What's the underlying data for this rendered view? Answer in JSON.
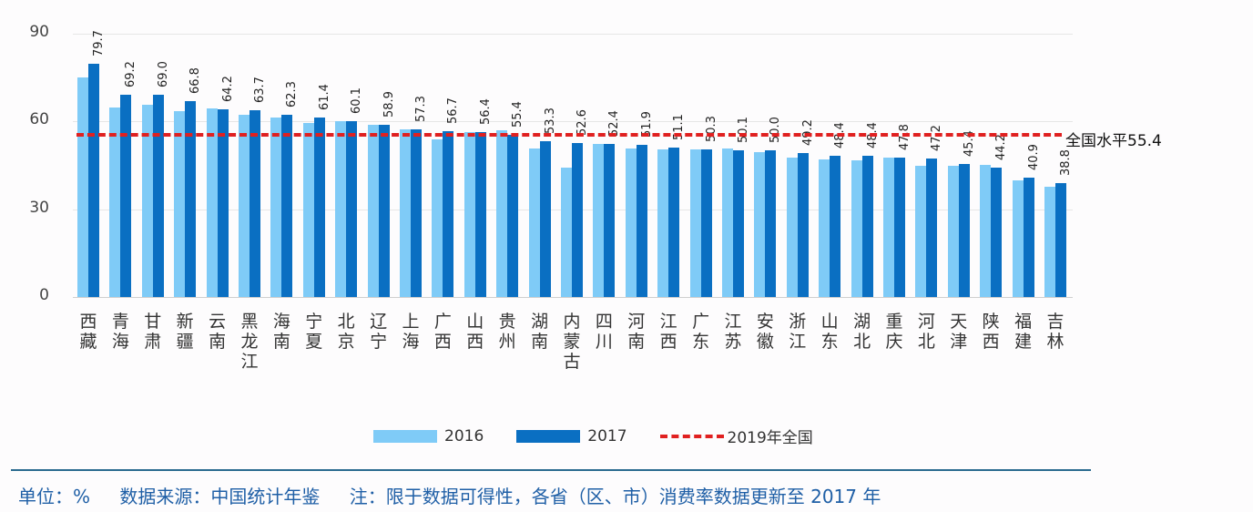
{
  "chart_data": {
    "type": "bar",
    "title": "",
    "xlabel": "",
    "ylabel": "",
    "ylim": [
      0,
      90
    ],
    "yticks": [
      0,
      30,
      60,
      90
    ],
    "grid": true,
    "legend_position": "bottom",
    "categories": [
      "西藏",
      "青海",
      "甘肃",
      "新疆",
      "云南",
      "黑龙江",
      "海南",
      "宁夏",
      "北京",
      "辽宁",
      "上海",
      "广西",
      "山西",
      "贵州",
      "湖南",
      "内蒙古",
      "四川",
      "河南",
      "江西",
      "广东",
      "江苏",
      "安徽",
      "浙江",
      "山东",
      "湖北",
      "重庆",
      "河北",
      "天津",
      "陕西",
      "福建",
      "吉林"
    ],
    "series": [
      {
        "name": "2016",
        "color": "#7fcbf7",
        "values": [
          75.1,
          64.9,
          65.8,
          63.5,
          64.5,
          62.3,
          61.2,
          59.6,
          60.1,
          59.0,
          57.3,
          53.8,
          56.5,
          57.1,
          50.8,
          44.1,
          52.4,
          50.9,
          50.4,
          50.6,
          50.8,
          49.6,
          47.8,
          46.9,
          46.6,
          47.5,
          45.0,
          44.7,
          45.1,
          40.0,
          37.6
        ]
      },
      {
        "name": "2017",
        "color": "#0a6fc2",
        "values": [
          79.7,
          69.2,
          69.0,
          66.8,
          64.2,
          63.7,
          62.3,
          61.4,
          60.1,
          58.9,
          57.3,
          56.7,
          56.4,
          55.4,
          53.3,
          52.6,
          52.4,
          51.9,
          51.1,
          50.3,
          50.1,
          50.0,
          49.2,
          48.4,
          48.4,
          47.8,
          47.2,
          45.4,
          44.2,
          40.9,
          38.8
        ]
      },
      {
        "name": "2019年全国",
        "type": "reference-line",
        "color": "#e02020",
        "value": 55.4
      }
    ],
    "annotations": [
      "全国水平55.4"
    ]
  },
  "legend": {
    "item_2016": "2016",
    "item_2017": "2017",
    "item_ref": "2019年全国"
  },
  "reference_label": "全国水平55.4",
  "footer": {
    "unit": "单位：%",
    "source": "数据来源：中国统计年鉴",
    "note": "注：限于数据可得性，各省（区、市）消费率数据更新至 2017 年"
  }
}
